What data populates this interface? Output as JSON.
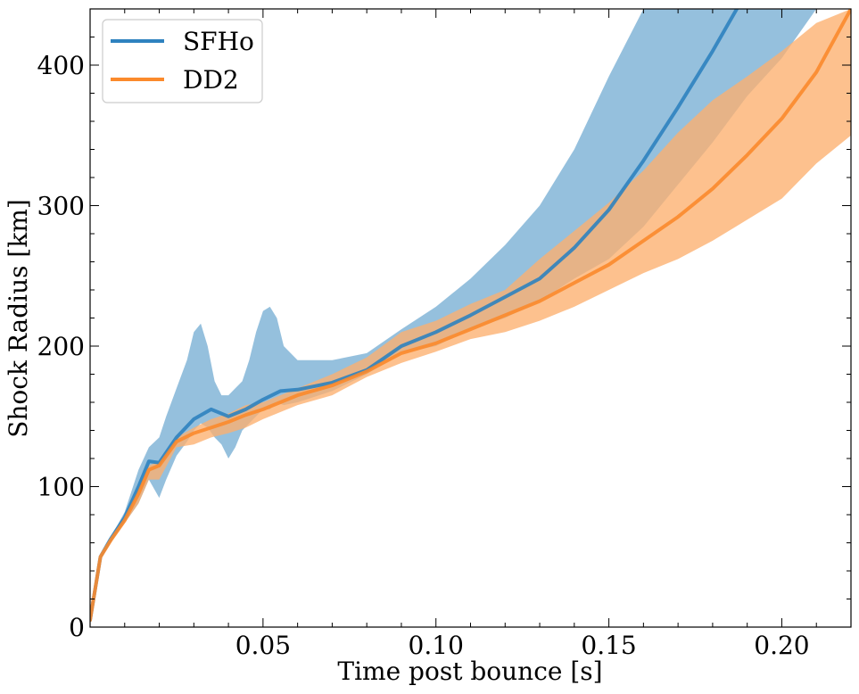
{
  "chart_data": {
    "type": "line",
    "title": "",
    "xlabel": "Time post bounce [s]",
    "ylabel": "Shock Radius [km]",
    "xlim": [
      0.0,
      0.22
    ],
    "ylim": [
      0,
      440
    ],
    "grid": false,
    "legend_position": "top-left",
    "x_ticks": [
      0.05,
      0.1,
      0.15,
      0.2
    ],
    "x_tick_labels": [
      "0.05",
      "0.10",
      "0.15",
      "0.20"
    ],
    "y_ticks": [
      0,
      100,
      200,
      300,
      400
    ],
    "y_tick_labels": [
      "0",
      "100",
      "200",
      "300",
      "400"
    ],
    "series": [
      {
        "name": "SFHo",
        "color": "#1f77b4",
        "line_color": "#2e82bf",
        "band_color": "#77aed4",
        "x": [
          0.0,
          0.003,
          0.006,
          0.01,
          0.014,
          0.017,
          0.02,
          0.025,
          0.03,
          0.035,
          0.04,
          0.045,
          0.05,
          0.055,
          0.06,
          0.07,
          0.08,
          0.09,
          0.1,
          0.11,
          0.12,
          0.13,
          0.14,
          0.15,
          0.16,
          0.17,
          0.18,
          0.187
        ],
        "values": [
          5,
          50,
          63,
          78,
          100,
          118,
          117,
          135,
          148,
          155,
          150,
          155,
          162,
          168,
          169,
          174,
          183,
          200,
          210,
          222,
          235,
          248,
          270,
          297,
          332,
          370,
          410,
          440
        ],
        "band_x": [
          0.0,
          0.003,
          0.006,
          0.01,
          0.014,
          0.017,
          0.02,
          0.022,
          0.025,
          0.028,
          0.03,
          0.032,
          0.034,
          0.036,
          0.038,
          0.04,
          0.042,
          0.044,
          0.046,
          0.048,
          0.05,
          0.052,
          0.054,
          0.056,
          0.06,
          0.07,
          0.08,
          0.09,
          0.1,
          0.11,
          0.12,
          0.13,
          0.14,
          0.15,
          0.16,
          0.17,
          0.18,
          0.19,
          0.2,
          0.21,
          0.22
        ],
        "band_upper": [
          5,
          50,
          64,
          82,
          112,
          128,
          135,
          150,
          170,
          190,
          210,
          216,
          200,
          175,
          165,
          165,
          170,
          175,
          190,
          210,
          225,
          228,
          220,
          200,
          190,
          190,
          195,
          212,
          228,
          248,
          272,
          300,
          340,
          392,
          440,
          440,
          440,
          440,
          440,
          440,
          440
        ],
        "band_lower": [
          5,
          48,
          60,
          74,
          88,
          105,
          92,
          105,
          122,
          132,
          140,
          145,
          142,
          135,
          130,
          120,
          128,
          140,
          145,
          150,
          155,
          155,
          160,
          158,
          160,
          168,
          180,
          195,
          200,
          212,
          220,
          232,
          248,
          262,
          285,
          315,
          345,
          378,
          405,
          440,
          440
        ]
      },
      {
        "name": "DD2",
        "color": "#ff7f0e",
        "line_color": "#fb8a2c",
        "band_color": "#fcb06e",
        "x": [
          0.0,
          0.003,
          0.006,
          0.01,
          0.014,
          0.017,
          0.02,
          0.025,
          0.03,
          0.035,
          0.04,
          0.045,
          0.05,
          0.06,
          0.07,
          0.08,
          0.09,
          0.1,
          0.11,
          0.12,
          0.13,
          0.14,
          0.15,
          0.16,
          0.17,
          0.18,
          0.19,
          0.2,
          0.21,
          0.22
        ],
        "values": [
          5,
          50,
          62,
          76,
          95,
          112,
          115,
          132,
          138,
          142,
          146,
          151,
          155,
          165,
          172,
          182,
          195,
          202,
          212,
          222,
          232,
          245,
          258,
          275,
          292,
          312,
          336,
          362,
          395,
          440
        ],
        "band_x": [
          0.0,
          0.003,
          0.006,
          0.01,
          0.014,
          0.017,
          0.02,
          0.025,
          0.03,
          0.035,
          0.04,
          0.045,
          0.05,
          0.06,
          0.07,
          0.08,
          0.09,
          0.1,
          0.11,
          0.12,
          0.13,
          0.14,
          0.15,
          0.16,
          0.17,
          0.18,
          0.19,
          0.2,
          0.21,
          0.22
        ],
        "band_upper": [
          5,
          50,
          63,
          78,
          100,
          115,
          118,
          135,
          142,
          148,
          152,
          158,
          160,
          170,
          180,
          192,
          210,
          218,
          230,
          240,
          262,
          282,
          302,
          325,
          352,
          375,
          392,
          410,
          430,
          440
        ],
        "band_lower": [
          5,
          48,
          60,
          74,
          88,
          105,
          105,
          128,
          130,
          135,
          138,
          142,
          148,
          158,
          165,
          178,
          188,
          196,
          205,
          210,
          218,
          228,
          240,
          252,
          262,
          275,
          290,
          305,
          330,
          350
        ]
      }
    ]
  }
}
